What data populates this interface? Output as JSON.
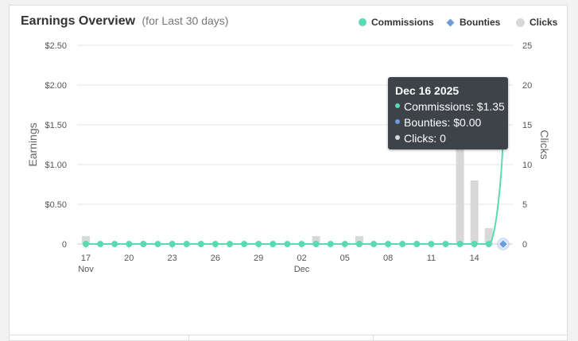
{
  "header": {
    "title": "Earnings Overview",
    "subtitle": "(for Last 30 days)"
  },
  "legend": [
    {
      "label": "Commissions",
      "icon": "circle",
      "color": "#5bd9b3"
    },
    {
      "label": "Bounties",
      "icon": "diamond",
      "color": "#6b9ce0"
    },
    {
      "label": "Clicks",
      "icon": "circle",
      "color": "#d8d8d8"
    }
  ],
  "tooltip": {
    "date": "Dec 16 2025",
    "commissions": "Commissions: $1.35",
    "bounties": "Bounties: $0.00",
    "clicks": "Clicks: 0"
  },
  "chart_data": {
    "type": "line",
    "xlabel": "",
    "ylabel": "Earnings",
    "y2label": "Clicks",
    "ylim": [
      0,
      2.5
    ],
    "y2lim": [
      0,
      25
    ],
    "y_ticks": [
      "$2.50",
      "$2.00",
      "$1.50",
      "$1.00",
      "$0.50",
      "0"
    ],
    "y2_ticks": [
      "25",
      "20",
      "15",
      "10",
      "5",
      "0"
    ],
    "x_ticks": [
      {
        "label": "17",
        "sub": "Nov"
      },
      {
        "label": "20",
        "sub": ""
      },
      {
        "label": "23",
        "sub": ""
      },
      {
        "label": "26",
        "sub": ""
      },
      {
        "label": "29",
        "sub": ""
      },
      {
        "label": "02",
        "sub": "Dec"
      },
      {
        "label": "05",
        "sub": ""
      },
      {
        "label": "08",
        "sub": ""
      },
      {
        "label": "11",
        "sub": ""
      },
      {
        "label": "14",
        "sub": ""
      }
    ],
    "x": [
      "Nov 17",
      "Nov 18",
      "Nov 19",
      "Nov 20",
      "Nov 21",
      "Nov 22",
      "Nov 23",
      "Nov 24",
      "Nov 25",
      "Nov 26",
      "Nov 27",
      "Nov 28",
      "Nov 29",
      "Nov 30",
      "Dec 01",
      "Dec 02",
      "Dec 03",
      "Dec 04",
      "Dec 05",
      "Dec 06",
      "Dec 07",
      "Dec 08",
      "Dec 09",
      "Dec 10",
      "Dec 11",
      "Dec 12",
      "Dec 13",
      "Dec 14",
      "Dec 15",
      "Dec 16"
    ],
    "series": [
      {
        "name": "Commissions",
        "type": "line",
        "axis": "left",
        "color": "#5bd9b3",
        "values": [
          0,
          0,
          0,
          0,
          0,
          0,
          0,
          0,
          0,
          0,
          0,
          0,
          0,
          0,
          0,
          0,
          0,
          0,
          0,
          0,
          0,
          0,
          0,
          0,
          0,
          0,
          0,
          0,
          0,
          1.35
        ]
      },
      {
        "name": "Bounties",
        "type": "line",
        "axis": "left",
        "color": "#6b9ce0",
        "values": [
          0,
          0,
          0,
          0,
          0,
          0,
          0,
          0,
          0,
          0,
          0,
          0,
          0,
          0,
          0,
          0,
          0,
          0,
          0,
          0,
          0,
          0,
          0,
          0,
          0,
          0,
          0,
          0,
          0,
          0
        ]
      },
      {
        "name": "Clicks",
        "type": "bar",
        "axis": "right",
        "color": "#d8d8d8",
        "values": [
          1,
          0,
          0,
          0,
          0,
          0,
          0,
          0,
          0,
          0,
          0,
          0,
          0,
          0,
          0,
          0,
          1,
          0,
          0,
          1,
          0,
          0,
          0,
          0,
          0,
          0,
          13,
          8,
          2,
          0
        ]
      }
    ],
    "grid": true,
    "legend_position": "top-right"
  }
}
